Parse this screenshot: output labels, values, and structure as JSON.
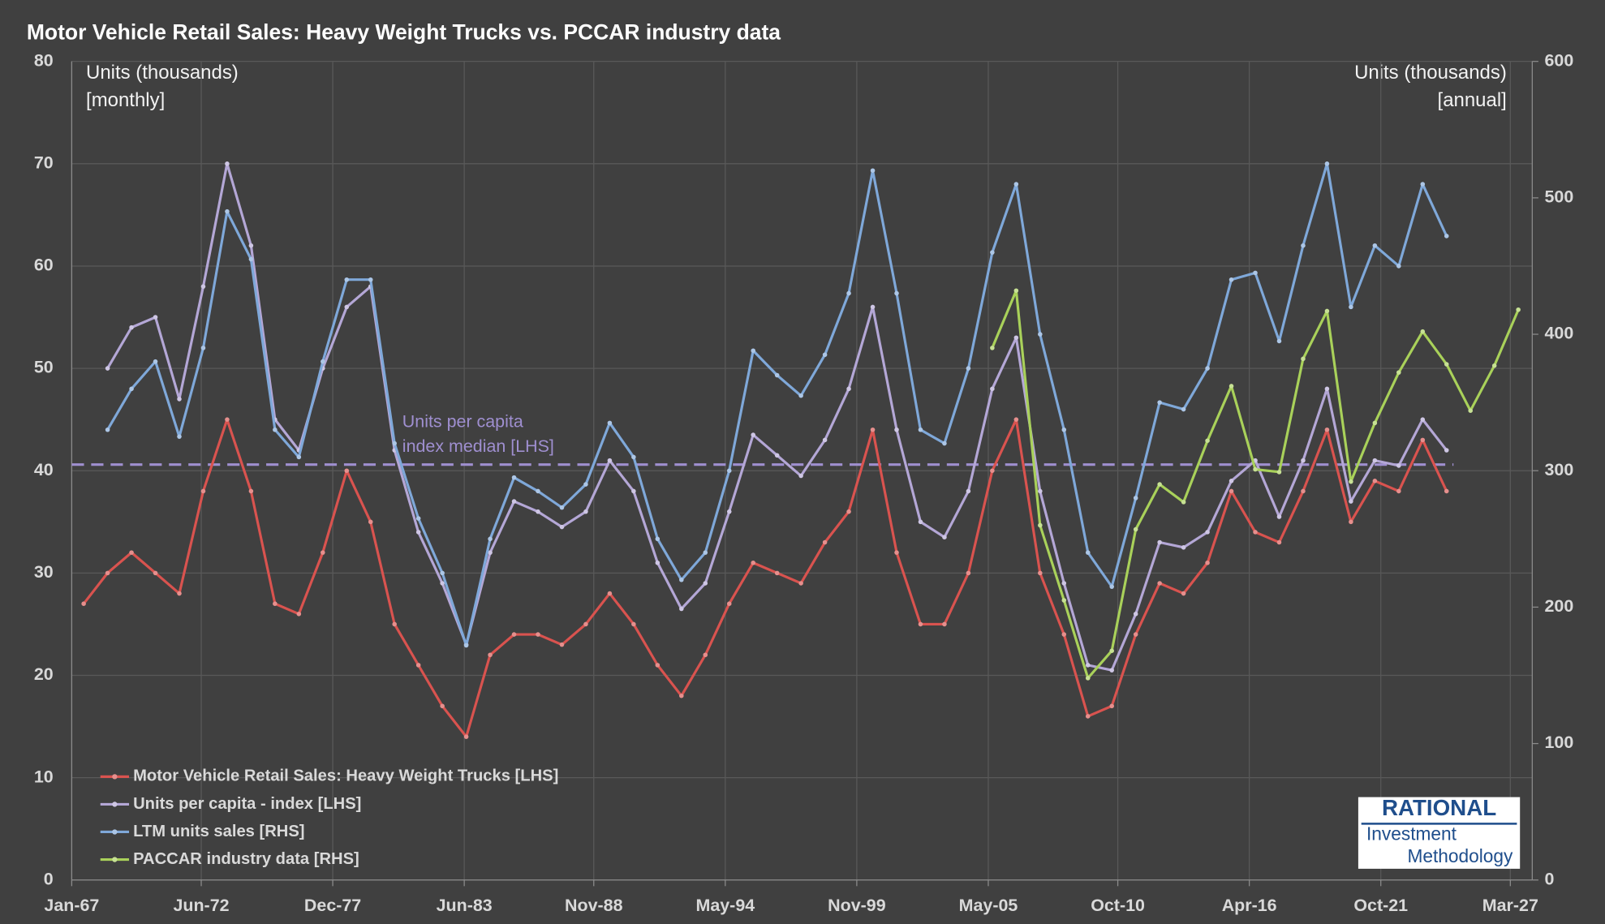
{
  "chart_data": {
    "type": "line",
    "title": "Motor Vehicle Retail Sales: Heavy Weight Trucks vs. PCCAR industry data",
    "y_label": [
      "Units (thousands)",
      "[monthly]"
    ],
    "y2_label": [
      "Units (thousands)",
      "[annual]"
    ],
    "x": [
      "1967-07",
      "1968-07",
      "1969-07",
      "1970-07",
      "1971-07",
      "1972-07",
      "1973-07",
      "1974-07",
      "1975-07",
      "1976-07",
      "1977-07",
      "1978-07",
      "1979-07",
      "1980-07",
      "1981-07",
      "1982-07",
      "1983-07",
      "1984-07",
      "1985-07",
      "1986-07",
      "1987-07",
      "1988-07",
      "1989-07",
      "1990-07",
      "1991-07",
      "1992-07",
      "1993-07",
      "1994-07",
      "1995-07",
      "1996-07",
      "1997-07",
      "1998-07",
      "1999-07",
      "2000-07",
      "2001-07",
      "2002-07",
      "2003-07",
      "2004-07",
      "2005-07",
      "2006-07",
      "2007-07",
      "2008-07",
      "2009-07",
      "2010-07",
      "2011-07",
      "2012-07",
      "2013-07",
      "2014-07",
      "2015-07",
      "2016-07",
      "2017-07",
      "2018-07",
      "2019-07",
      "2020-07",
      "2021-07",
      "2022-07",
      "2023-07",
      "2024-07"
    ],
    "xlim": [
      "1967-01",
      "2028-02"
    ],
    "xticks": [
      {
        "value": "1967-01",
        "label": "Jan-67"
      },
      {
        "value": "1972-06",
        "label": "Jun-72"
      },
      {
        "value": "1977-12",
        "label": "Dec-77"
      },
      {
        "value": "1983-06",
        "label": "Jun-83"
      },
      {
        "value": "1988-11",
        "label": "Nov-88"
      },
      {
        "value": "1994-05",
        "label": "May-94"
      },
      {
        "value": "1999-11",
        "label": "Nov-99"
      },
      {
        "value": "2005-05",
        "label": "May-05"
      },
      {
        "value": "2010-10",
        "label": "Oct-10"
      },
      {
        "value": "2016-04",
        "label": "Apr-16"
      },
      {
        "value": "2021-10",
        "label": "Oct-21"
      },
      {
        "value": "2027-03",
        "label": "Mar-27"
      }
    ],
    "ylim": [
      0,
      80
    ],
    "yticks": [
      0,
      10,
      20,
      30,
      40,
      50,
      60,
      70,
      80
    ],
    "y2lim": [
      0,
      600
    ],
    "y2ticks": [
      0,
      100,
      200,
      300,
      400,
      500,
      600
    ],
    "grid": true,
    "series": [
      {
        "name": "Motor Vehicle Retail Sales: Heavy Weight Trucks [LHS]",
        "color": "#d9534f",
        "axis": "y",
        "values": [
          27,
          30,
          32,
          30,
          28,
          38,
          45,
          38,
          27,
          26,
          32,
          40,
          35,
          25,
          21,
          17,
          14,
          22,
          24,
          24,
          23,
          25,
          28,
          25,
          21,
          18,
          22,
          27,
          31,
          30,
          29,
          33,
          36,
          44,
          32,
          25,
          25,
          30,
          40,
          45,
          30,
          24,
          16,
          17,
          24,
          29,
          28,
          31,
          38,
          34,
          33,
          38,
          44,
          35,
          39,
          38,
          43,
          38
        ]
      },
      {
        "name": "Units per capita - index [LHS]",
        "color": "#b4a7d6",
        "axis": "y",
        "values": [
          null,
          50,
          54,
          55,
          47,
          58,
          70,
          62,
          45,
          42,
          50,
          56,
          58,
          42,
          34,
          29,
          23,
          32,
          37,
          36,
          34.5,
          36,
          41,
          38,
          31,
          26.5,
          29,
          36,
          43.5,
          41.5,
          39.5,
          43,
          48,
          56,
          44,
          35,
          33.5,
          38,
          48,
          53,
          38,
          29,
          21,
          20.5,
          26,
          33,
          32.5,
          34,
          39,
          41,
          35.5,
          41,
          48,
          37,
          41,
          40.5,
          45,
          42
        ]
      },
      {
        "name": "LTM units sales [RHS]",
        "color": "#7fa8d9",
        "axis": "y2",
        "values": [
          null,
          330,
          360,
          380,
          325,
          390,
          490,
          455,
          330,
          310,
          380,
          440,
          440,
          320,
          265,
          225,
          172,
          250,
          295,
          285,
          273,
          290,
          335,
          310,
          250,
          220,
          240,
          300,
          388,
          370,
          355,
          385,
          430,
          520,
          430,
          330,
          320,
          375,
          460,
          510,
          400,
          330,
          240,
          215,
          280,
          350,
          345,
          375,
          440,
          445,
          395,
          465,
          525,
          420,
          465,
          450,
          510,
          472
        ]
      },
      {
        "name": "PACCAR industry data [RHS]",
        "color": "#a9d15a",
        "axis": "y2",
        "x": [
          "2005-07",
          "2006-07",
          "2007-07",
          "2008-07",
          "2009-07",
          "2010-07",
          "2011-07",
          "2012-07",
          "2013-07",
          "2014-07",
          "2015-07",
          "2016-07",
          "2017-07",
          "2018-07",
          "2019-07",
          "2020-07",
          "2021-07",
          "2022-07",
          "2023-07",
          "2024-07",
          "2025-07",
          "2026-07",
          "2027-07"
        ],
        "values": [
          390,
          432,
          260,
          205,
          148,
          168,
          257,
          290,
          277,
          322,
          362,
          301,
          299,
          382,
          417,
          292,
          335,
          372,
          402,
          378,
          344,
          377,
          418
        ]
      }
    ],
    "reference_line": {
      "value": 40.6,
      "color": "#9f8fd0",
      "label": [
        "Units per capita",
        "index median [LHS]"
      ]
    },
    "watermark": [
      "RATIONAL",
      "Investment",
      "Methodology"
    ]
  }
}
